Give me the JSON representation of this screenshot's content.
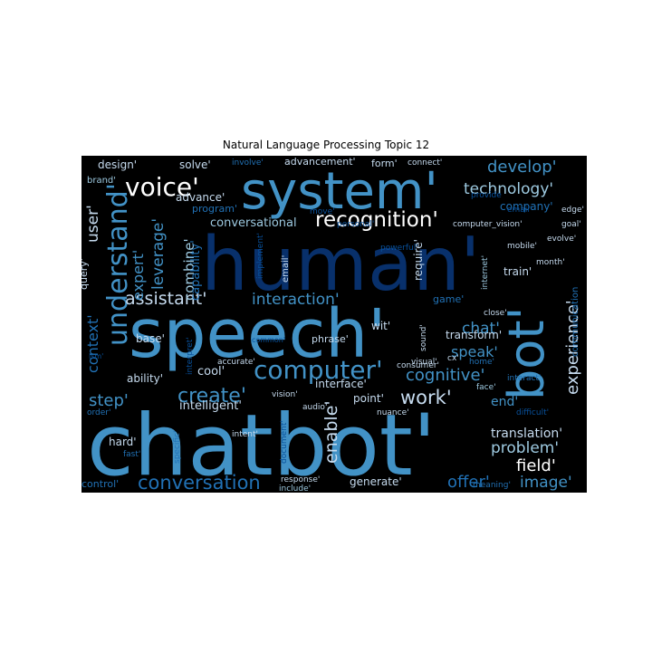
{
  "title": "Natural Language Processing Topic 12",
  "colors": {
    "background": "#000000",
    "palette": [
      "#08306b",
      "#08519c",
      "#2171b5",
      "#4292c6",
      "#6baed6",
      "#9ecae1",
      "#c6dbef",
      "#ffffff"
    ]
  },
  "words": [
    {
      "text": "chatbot'",
      "color": "#4292c6"
    },
    {
      "text": "human'",
      "color": "#08306b"
    },
    {
      "text": "speech'",
      "color": "#4292c6"
    },
    {
      "text": "system'",
      "color": "#4292c6"
    },
    {
      "text": "bot'",
      "color": "#4292c6"
    },
    {
      "text": "understand'",
      "color": "#4292c6"
    },
    {
      "text": "voice'",
      "color": "#ffffff"
    },
    {
      "text": "recognition'",
      "color": "#ffffff"
    },
    {
      "text": "computer'",
      "color": "#4292c6"
    },
    {
      "text": "develop'",
      "color": "#4292c6"
    },
    {
      "text": "technology'",
      "color": "#9ecae1"
    },
    {
      "text": "experience'",
      "color": "#c6dbef"
    },
    {
      "text": "create'",
      "color": "#4292c6"
    },
    {
      "text": "conversation",
      "color": "#2171b5"
    },
    {
      "text": "assistant'",
      "color": "#c6dbef"
    },
    {
      "text": "interaction'",
      "color": "#4292c6"
    },
    {
      "text": "cognitive'",
      "color": "#4292c6"
    },
    {
      "text": "work'",
      "color": "#c6dbef"
    },
    {
      "text": "problem'",
      "color": "#9ecae1"
    },
    {
      "text": "enable'",
      "color": "#c6dbef"
    },
    {
      "text": "chat'",
      "color": "#4292c6"
    },
    {
      "text": "speak'",
      "color": "#4292c6"
    },
    {
      "text": "field'",
      "color": "#ffffff"
    },
    {
      "text": "image'",
      "color": "#4292c6"
    },
    {
      "text": "offer'",
      "color": "#2171b5"
    },
    {
      "text": "step'",
      "color": "#4292c6"
    },
    {
      "text": "user'",
      "color": "#c6dbef"
    },
    {
      "text": "leverage'",
      "color": "#4292c6"
    },
    {
      "text": "expert'",
      "color": "#4292c6"
    },
    {
      "text": "context'",
      "color": "#2171b5"
    },
    {
      "text": "combine'",
      "color": "#9ecae1"
    },
    {
      "text": "capability'",
      "color": "#2171b5"
    },
    {
      "text": "translation'",
      "color": "#c6dbef"
    },
    {
      "text": "end'",
      "color": "#4292c6"
    },
    {
      "text": "intelligent'",
      "color": "#c6dbef"
    },
    {
      "text": "conversational",
      "color": "#9ecae1"
    },
    {
      "text": "design'",
      "color": "#c6dbef"
    },
    {
      "text": "solve'",
      "color": "#c6dbef"
    },
    {
      "text": "advancement'",
      "color": "#c6dbef"
    },
    {
      "text": "form'",
      "color": "#c6dbef"
    },
    {
      "text": "company'",
      "color": "#2171b5"
    },
    {
      "text": "program'",
      "color": "#2171b5"
    },
    {
      "text": "advance'",
      "color": "#c6dbef"
    },
    {
      "text": "brand'",
      "color": "#9ecae1"
    },
    {
      "text": "base'",
      "color": "#c6dbef"
    },
    {
      "text": "ability'",
      "color": "#c6dbef"
    },
    {
      "text": "cool'",
      "color": "#c6dbef"
    },
    {
      "text": "hard'",
      "color": "#c6dbef"
    },
    {
      "text": "generate'",
      "color": "#c6dbef"
    },
    {
      "text": "control'",
      "color": "#2171b5"
    },
    {
      "text": "query'",
      "color": "#c6dbef"
    },
    {
      "text": "transform'",
      "color": "#c6dbef"
    },
    {
      "text": "train'",
      "color": "#c6dbef"
    },
    {
      "text": "require'",
      "color": "#c6dbef"
    },
    {
      "text": "email'",
      "color": "#c6dbef"
    },
    {
      "text": "game'",
      "color": "#2171b5"
    },
    {
      "text": "wit'",
      "color": "#c6dbef"
    },
    {
      "text": "phrase'",
      "color": "#c6dbef"
    },
    {
      "text": "interface'",
      "color": "#c6dbef"
    },
    {
      "text": "point'",
      "color": "#c6dbef"
    },
    {
      "text": "communication",
      "color": "#2171b5"
    },
    {
      "text": "involve'",
      "color": "#2171b5"
    },
    {
      "text": "connect'",
      "color": "#c6dbef"
    },
    {
      "text": "computer_vision'",
      "color": "#c6dbef"
    },
    {
      "text": "personal'",
      "color": "#08519c"
    },
    {
      "text": "goal'",
      "color": "#c6dbef"
    },
    {
      "text": "provide",
      "color": "#08519c"
    },
    {
      "text": "edge'",
      "color": "#c6dbef"
    },
    {
      "text": "email'",
      "color": "#08519c"
    },
    {
      "text": "evolve'",
      "color": "#c6dbef"
    },
    {
      "text": "mobile'",
      "color": "#c6dbef"
    },
    {
      "text": "month'",
      "color": "#c6dbef"
    },
    {
      "text": "internet'",
      "color": "#9ecae1"
    },
    {
      "text": "powerful'",
      "color": "#08519c"
    },
    {
      "text": "implement'",
      "color": "#08519c"
    },
    {
      "text": "move'",
      "color": "#08519c"
    },
    {
      "text": "close'",
      "color": "#c6dbef"
    },
    {
      "text": "interpret'",
      "color": "#08519c"
    },
    {
      "text": "common'",
      "color": "#08519c"
    },
    {
      "text": "accurate'",
      "color": "#c6dbef"
    },
    {
      "text": "sound'",
      "color": "#c6dbef"
    },
    {
      "text": "visual'",
      "color": "#c6dbef"
    },
    {
      "text": "home'",
      "color": "#2171b5"
    },
    {
      "text": "cx'",
      "color": "#c6dbef"
    },
    {
      "text": "consumer'",
      "color": "#c6dbef"
    },
    {
      "text": "face'",
      "color": "#9ecae1"
    },
    {
      "text": "interact'",
      "color": "#2171b5"
    },
    {
      "text": "difficult'",
      "color": "#08519c"
    },
    {
      "text": "vision'",
      "color": "#c6dbef"
    },
    {
      "text": "audio'",
      "color": "#c6dbef"
    },
    {
      "text": "nuance'",
      "color": "#c6dbef"
    },
    {
      "text": "intent'",
      "color": "#c6dbef"
    },
    {
      "text": "document'",
      "color": "#08519c"
    },
    {
      "text": "specific'",
      "color": "#2171b5"
    },
    {
      "text": "fast'",
      "color": "#2171b5"
    },
    {
      "text": "order'",
      "color": "#2171b5"
    },
    {
      "text": "response'",
      "color": "#c6dbef"
    },
    {
      "text": "include'",
      "color": "#9ecae1"
    },
    {
      "text": "meaning'",
      "color": "#2171b5"
    },
    {
      "text": "ism'",
      "color": "#08519c"
    }
  ]
}
